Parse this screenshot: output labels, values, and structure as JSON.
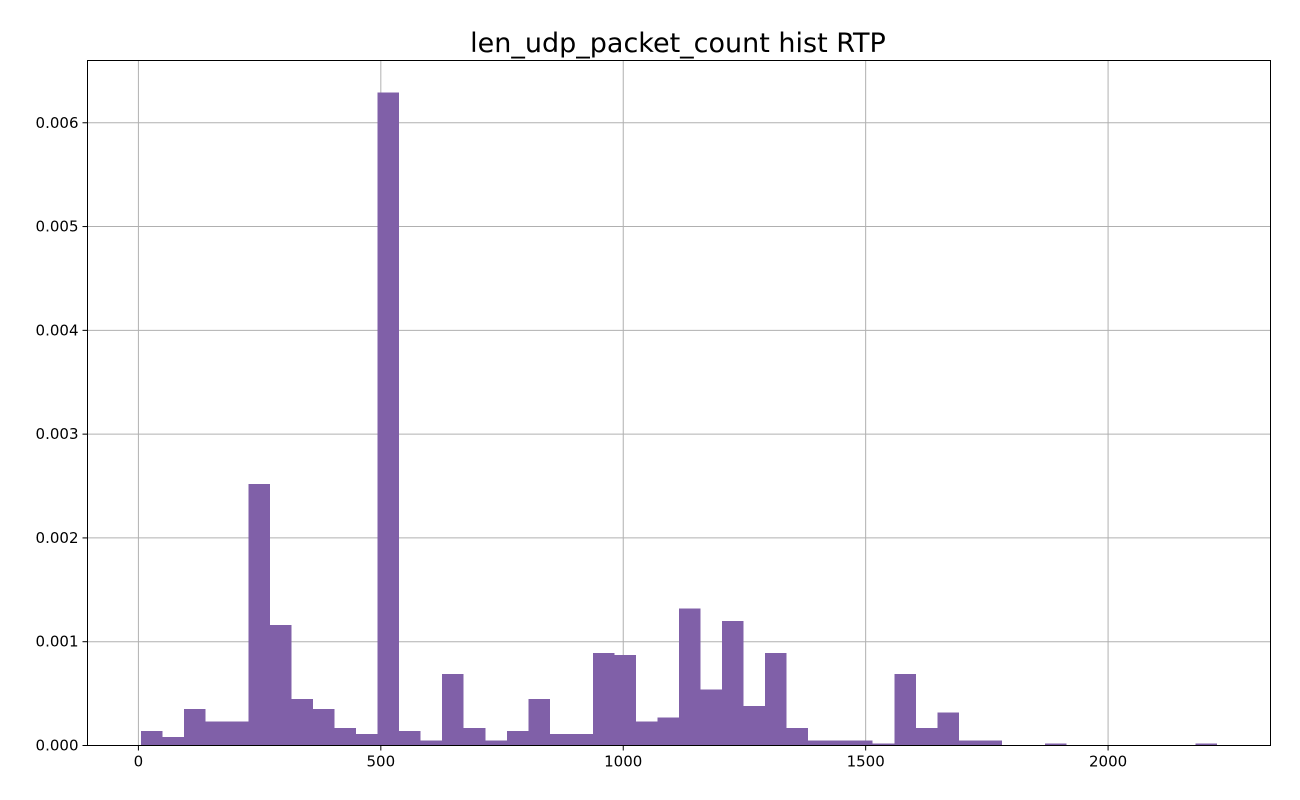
{
  "chart_data": {
    "type": "bar",
    "title": "len_udp_packet_count hist RTP",
    "xlabel": "",
    "ylabel": "",
    "xlim": [
      -105,
      2335
    ],
    "ylim": [
      0,
      0.0066
    ],
    "grid": true,
    "bar_color": "#8060a8",
    "x_ticks": [
      0,
      500,
      1000,
      1500,
      2000
    ],
    "x_tick_labels": [
      "0",
      "500",
      "1000",
      "1500",
      "2000"
    ],
    "y_ticks": [
      0.0,
      0.001,
      0.002,
      0.003,
      0.004,
      0.005,
      0.006
    ],
    "y_tick_labels": [
      "0.000",
      "0.001",
      "0.002",
      "0.003",
      "0.004",
      "0.005",
      "0.006"
    ],
    "bin_edges": [
      5,
      49.4,
      93.8,
      138.2,
      182.6,
      227,
      271.4,
      315.8,
      360.2,
      404.6,
      449,
      493.4,
      537.8,
      582.2,
      626.6,
      671,
      715.4,
      759.8,
      804.2,
      848.6,
      893,
      937.4,
      981.8,
      1026.2,
      1070.6,
      1115,
      1159.4,
      1203.8,
      1248.2,
      1292.6,
      1337,
      1381.4,
      1425.8,
      1470.2,
      1514.6,
      1559,
      1603.4,
      1647.8,
      1692.2,
      1736.6,
      1781,
      1825.4,
      1869.8,
      1914.2,
      1958.6,
      2003,
      2047.4,
      2091.8,
      2136.2,
      2180.6,
      2225
    ],
    "values": [
      0.00014,
      8e-05,
      0.00035,
      0.00023,
      0.00023,
      0.00252,
      0.00116,
      0.00045,
      0.00035,
      0.00017,
      0.00011,
      0.00629,
      0.00014,
      5e-05,
      0.00069,
      0.00017,
      5e-05,
      0.00014,
      0.00045,
      0.00011,
      0.00011,
      0.00089,
      0.00087,
      0.00023,
      0.00027,
      0.00132,
      0.00054,
      0.0012,
      0.00038,
      0.00089,
      0.00017,
      5e-05,
      5e-05,
      5e-05,
      2e-05,
      0.00069,
      0.00017,
      0.00032,
      5e-05,
      5e-05,
      0,
      0,
      2e-05,
      0,
      0,
      0,
      0,
      0,
      0,
      2e-05
    ]
  }
}
